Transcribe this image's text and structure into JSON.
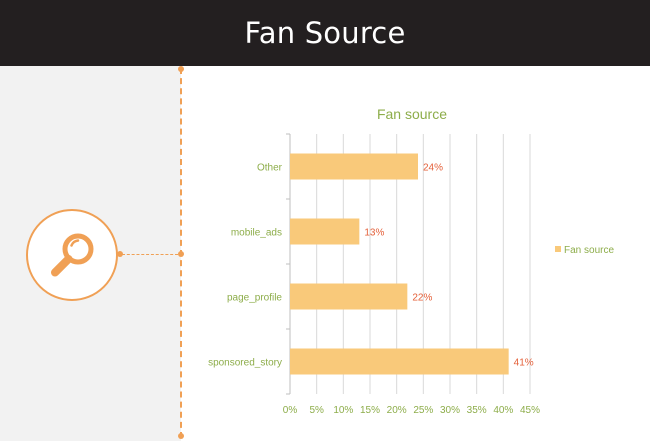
{
  "header": {
    "title": "Fan Source"
  },
  "icons": {
    "main": "search-icon"
  },
  "colors": {
    "header_bg": "#231f20",
    "accent": "#f0a055",
    "bar": "#f9c97a",
    "label": "#8dad4a",
    "value_label": "#e4603a"
  },
  "chart_data": {
    "type": "bar",
    "orientation": "horizontal",
    "title": "Fan source",
    "categories": [
      "Other",
      "mobile_ads",
      "page_profile",
      "sponsored_story"
    ],
    "series": [
      {
        "name": "Fan source",
        "values": [
          24,
          13,
          22,
          41
        ],
        "labels": [
          "24%",
          "13%",
          "22%",
          "41%"
        ]
      }
    ],
    "xlim": [
      0,
      45
    ],
    "xticks": [
      "0%",
      "5%",
      "10%",
      "15%",
      "20%",
      "25%",
      "30%",
      "35%",
      "40%",
      "45%"
    ],
    "grid": true,
    "legend": "right"
  }
}
